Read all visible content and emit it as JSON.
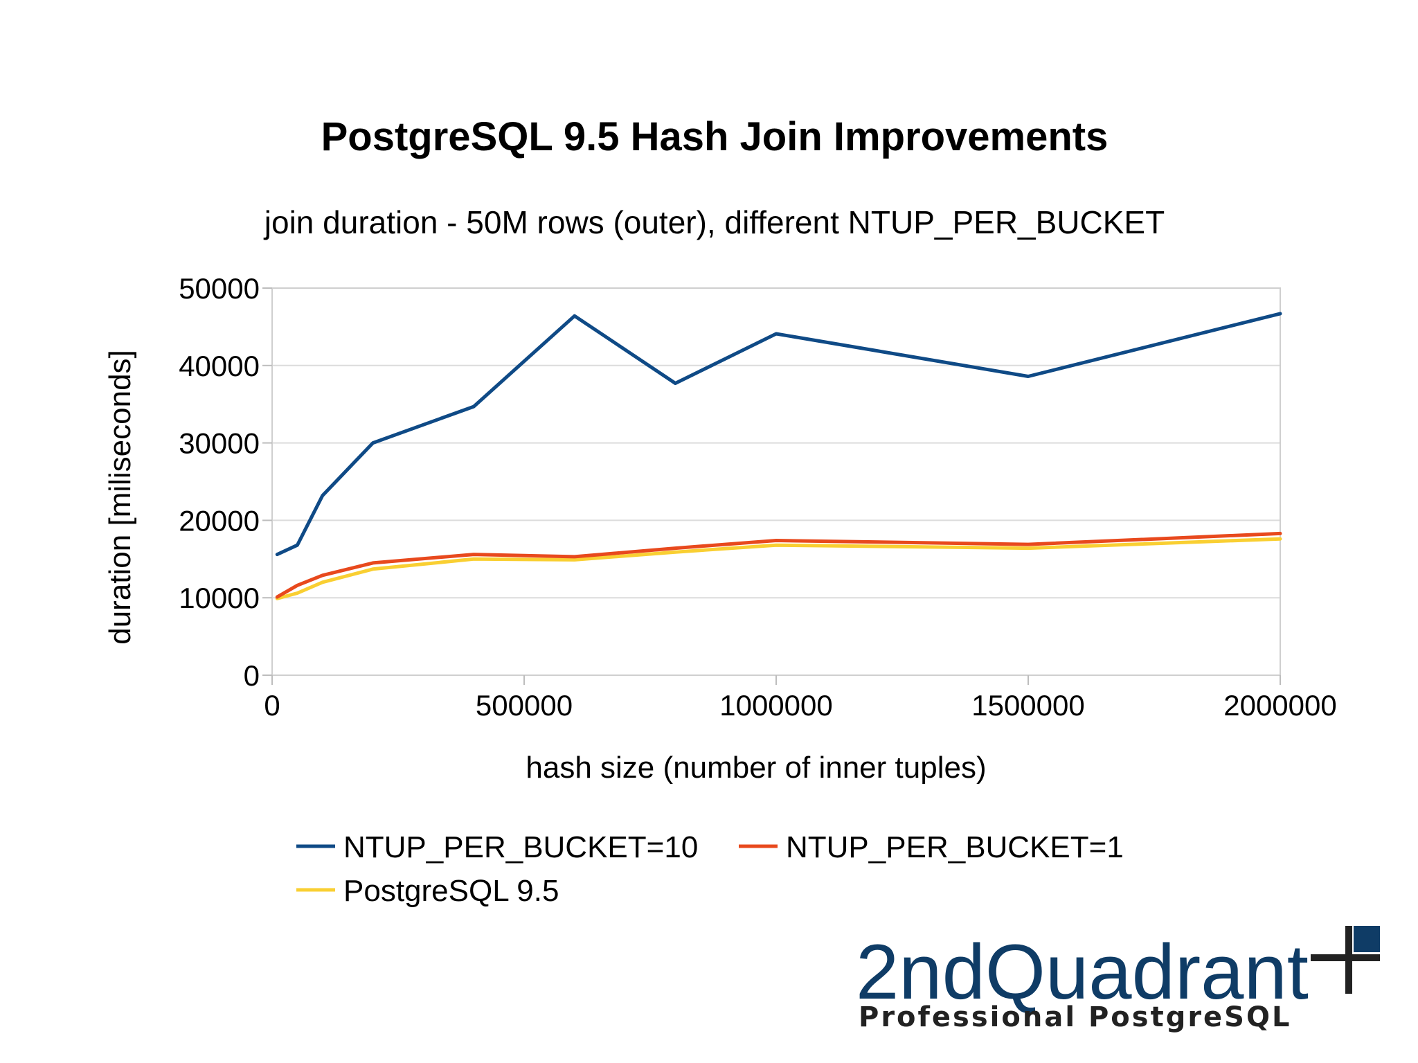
{
  "chart_data": {
    "type": "line",
    "title": "PostgreSQL 9.5 Hash Join Improvements",
    "subtitle": "join duration - 50M rows (outer), different NTUP_PER_BUCKET",
    "xlabel": "hash size (number of inner tuples)",
    "ylabel": "duration [miliseconds]",
    "xlim": [
      0,
      2000000
    ],
    "ylim": [
      0,
      50000
    ],
    "xticks": [
      "0",
      "500000",
      "1000000",
      "1500000",
      "2000000"
    ],
    "yticks": [
      "0",
      "10000",
      "20000",
      "30000",
      "40000",
      "50000"
    ],
    "grid": true,
    "legend_position": "bottom",
    "series": [
      {
        "name": "NTUP_PER_BUCKET=10",
        "color": "#0f4a86",
        "x": [
          10000,
          50000,
          100000,
          200000,
          400000,
          600000,
          800000,
          1000000,
          1500000,
          2000000
        ],
        "y": [
          15600,
          16800,
          23200,
          30000,
          34700,
          46400,
          37700,
          44100,
          38600,
          46700
        ]
      },
      {
        "name": "NTUP_PER_BUCKET=1",
        "color": "#e8491d",
        "x": [
          10000,
          50000,
          100000,
          200000,
          400000,
          600000,
          800000,
          1000000,
          1500000,
          2000000
        ],
        "y": [
          10100,
          11600,
          12900,
          14500,
          15600,
          15300,
          16400,
          17400,
          16900,
          18300
        ]
      },
      {
        "name": "PostgreSQL 9.5",
        "color": "#f9cf32",
        "x": [
          10000,
          50000,
          100000,
          200000,
          400000,
          600000,
          800000,
          1000000,
          1500000,
          2000000
        ],
        "y": [
          9900,
          10600,
          12000,
          13700,
          15000,
          14900,
          15900,
          16800,
          16400,
          17600
        ]
      }
    ]
  },
  "branding": {
    "name": "2ndQuadrant",
    "tagline": "Professional PostgreSQL",
    "name_color": "#0f3c66",
    "accent_color": "#0f3c66",
    "cross_color": "#222222"
  }
}
